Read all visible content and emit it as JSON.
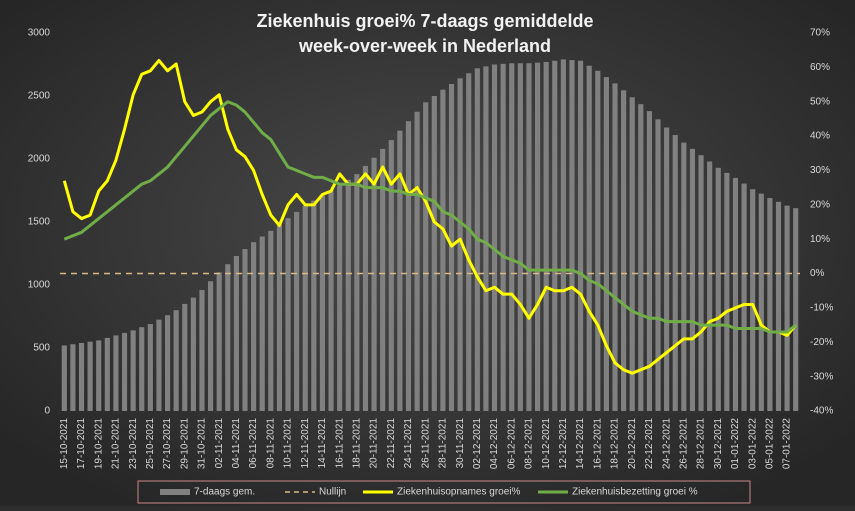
{
  "chart_data": {
    "type": "bar_line",
    "title": [
      "Ziekenhuis groei% 7-daags gemiddelde",
      "week-over-week in Nederland"
    ],
    "categories": [
      "15-10-2021",
      null,
      "17-10-2021",
      null,
      "19-10-2021",
      null,
      "21-10-2021",
      null,
      "23-10-2021",
      null,
      "25-10-2021",
      null,
      "27-10-2021",
      null,
      "29-10-2021",
      null,
      "31-10-2021",
      null,
      "02-11-2021",
      null,
      "04-11-2021",
      null,
      "06-11-2021",
      null,
      "08-11-2021",
      null,
      "10-11-2021",
      null,
      "12-11-2021",
      null,
      "14-11-2021",
      null,
      "16-11-2021",
      null,
      "18-11-2021",
      null,
      "20-11-2021",
      null,
      "22-11-2021",
      null,
      "24-11-2021",
      null,
      "26-11-2021",
      null,
      "28-11-2021",
      null,
      "30-11-2021",
      null,
      "02-12-2021",
      null,
      "04-12-2021",
      null,
      "06-12-2021",
      null,
      "08-12-2021",
      null,
      "10-12-2021",
      null,
      "12-12-2021",
      null,
      "14-12-2021",
      null,
      "16-12-2021",
      null,
      "18-12-2021",
      null,
      "20-12-2021",
      null,
      "22-12-2021",
      null,
      "24-12-2021",
      null,
      "26-12-2021",
      null,
      "28-12-2021",
      null,
      "30-12-2021",
      null,
      "01-01-2022",
      null,
      "03-01-2022",
      null,
      "05-01-2022",
      null,
      "07-01-2022",
      null
    ],
    "series": [
      {
        "name": "7-daags gem.",
        "kind": "bar",
        "axis": "y",
        "color": "#808080",
        "values": [
          520,
          530,
          540,
          550,
          560,
          580,
          600,
          620,
          640,
          665,
          690,
          725,
          760,
          800,
          850,
          900,
          960,
          1030,
          1100,
          1165,
          1230,
          1285,
          1340,
          1385,
          1430,
          1480,
          1530,
          1580,
          1630,
          1670,
          1710,
          1750,
          1790,
          1835,
          1880,
          1945,
          2010,
          2080,
          2150,
          2225,
          2300,
          2375,
          2450,
          2500,
          2550,
          2595,
          2640,
          2680,
          2720,
          2735,
          2750,
          2755,
          2760,
          2760,
          2760,
          2765,
          2770,
          2780,
          2790,
          2785,
          2780,
          2740,
          2700,
          2650,
          2600,
          2545,
          2490,
          2435,
          2380,
          2315,
          2250,
          2190,
          2130,
          2080,
          2030,
          1980,
          1930,
          1890,
          1850,
          1805,
          1760,
          1725,
          1690,
          1660,
          1630,
          1610
        ]
      },
      {
        "name": "Ziekenhuisopnames groei%",
        "kind": "line",
        "axis": "y2",
        "color": "#ffff00",
        "values": [
          27,
          18,
          16,
          17,
          24,
          27,
          33,
          42,
          52,
          58,
          59,
          62,
          59,
          61,
          50,
          46,
          47,
          50,
          52,
          42,
          36,
          34,
          30,
          23,
          17,
          14,
          20,
          23,
          20,
          20,
          23,
          24,
          29,
          26,
          26,
          29,
          26,
          31,
          26,
          29,
          23,
          25,
          21,
          15,
          13,
          8,
          10,
          4,
          -1,
          -5,
          -4,
          -6,
          -6,
          -9,
          -13,
          -9,
          -4,
          -5,
          -5,
          -4,
          -6,
          -11,
          -15,
          -21,
          -26,
          -28,
          -29,
          -28,
          -27,
          -25,
          -23,
          -21,
          -19,
          -19,
          -17,
          -14,
          -13,
          -11,
          -10,
          -9,
          -9,
          -15,
          -17,
          -17,
          -18,
          -15
        ]
      },
      {
        "name": "Ziekenhuisbezetting groei %",
        "kind": "line",
        "axis": "y2",
        "color": "#70ad47",
        "values": [
          10,
          11,
          12,
          14,
          16,
          18,
          20,
          22,
          24,
          26,
          27,
          29,
          31,
          34,
          37,
          40,
          43,
          46,
          48,
          50,
          49,
          47,
          44,
          41,
          39,
          35,
          31,
          30,
          29,
          28,
          28,
          27,
          26,
          26,
          26,
          25,
          25,
          25,
          24,
          24,
          23,
          23,
          22,
          21,
          18,
          17,
          15,
          13,
          10,
          9,
          7,
          5,
          4,
          3,
          1,
          1,
          1,
          1,
          1,
          1,
          0,
          -2,
          -3,
          -5,
          -7,
          -9,
          -11,
          -12,
          -13,
          -13,
          -14,
          -14,
          -14,
          -14,
          -15,
          -15,
          -15,
          -15,
          -16,
          -16,
          -16,
          -16,
          -17,
          -17,
          -17,
          -15
        ]
      }
    ],
    "reference_line": {
      "name": "Nullijn",
      "value": 0,
      "axis": "y2",
      "color": "#d8b986"
    },
    "ylim": [
      0,
      3000
    ],
    "yticks": [
      0,
      500,
      1000,
      1500,
      2000,
      2500,
      3000
    ],
    "y2lim": [
      -40,
      70
    ],
    "y2ticks": [
      {
        "value": -40,
        "label": "-40%"
      },
      {
        "value": -30,
        "label": "-30%"
      },
      {
        "value": -20,
        "label": "-20%"
      },
      {
        "value": -10,
        "label": "-10%"
      },
      {
        "value": 0,
        "label": "0%"
      },
      {
        "value": 10,
        "label": "10%"
      },
      {
        "value": 20,
        "label": "20%"
      },
      {
        "value": 30,
        "label": "30%"
      },
      {
        "value": 40,
        "label": "40%"
      },
      {
        "value": 50,
        "label": "50%"
      },
      {
        "value": 60,
        "label": "60%"
      },
      {
        "value": 70,
        "label": "70%"
      }
    ],
    "legend": "bottom"
  }
}
